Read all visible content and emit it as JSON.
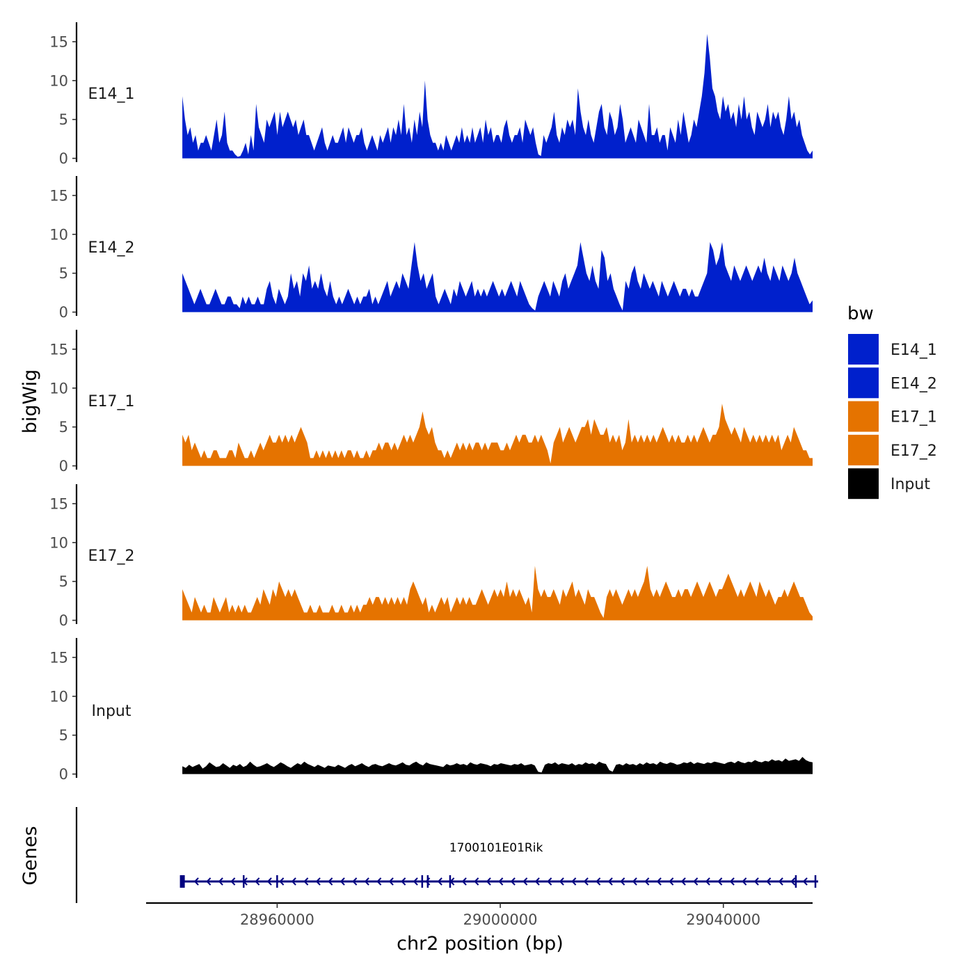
{
  "chart_data": {
    "type": "area",
    "title": "",
    "ylabel": "bigWig",
    "genes_label": "Genes",
    "xlabel": "chr2 position (bp)",
    "xlim": [
      28936500,
      29056000
    ],
    "ylim": [
      0,
      17.5
    ],
    "y_ticks": [
      0,
      5,
      10,
      15
    ],
    "x_ticks": [
      28960000,
      29000000,
      29040000
    ],
    "x_tick_labels": [
      "28960000",
      "29000000",
      "29040000"
    ],
    "legend": {
      "title": "bw",
      "position": "right",
      "entries": [
        {
          "name": "E14_1",
          "color": "#0020cc"
        },
        {
          "name": "E14_2",
          "color": "#0020cc"
        },
        {
          "name": "E17_1",
          "color": "#e57300"
        },
        {
          "name": "E17_2",
          "color": "#e57300"
        },
        {
          "name": "Input",
          "color": "#000000"
        }
      ]
    },
    "series": [
      {
        "name": "E14_1",
        "color": "#0020cc",
        "x_start": 28943000,
        "x_end": 29056000,
        "values": [
          8,
          5,
          3,
          4,
          2,
          3,
          1,
          2,
          2,
          3,
          2,
          1,
          3,
          5,
          2,
          3,
          6,
          2,
          1,
          1,
          0.5,
          0.2,
          0.3,
          1,
          2,
          0.5,
          3,
          1,
          7,
          4,
          3,
          2,
          5,
          4,
          5,
          6,
          3,
          6,
          4,
          5,
          6,
          5,
          4,
          5,
          3,
          4,
          5,
          3,
          3,
          2,
          1,
          2,
          3,
          4,
          2,
          1,
          2,
          3,
          2,
          2,
          3,
          4,
          2,
          4,
          3,
          2,
          3,
          3,
          4,
          2,
          1,
          2,
          3,
          2,
          1,
          3,
          2,
          3,
          4,
          2,
          4,
          3,
          5,
          3,
          7,
          3,
          4,
          2,
          5,
          3,
          6,
          4,
          10,
          5,
          3,
          2,
          2,
          1,
          2,
          1,
          3,
          2,
          1,
          2,
          3,
          2,
          4,
          2,
          3,
          2,
          4,
          2,
          3,
          4,
          2,
          5,
          3,
          4,
          2,
          3,
          3,
          2,
          4,
          5,
          3,
          2,
          3,
          3,
          4,
          2,
          5,
          4,
          3,
          4,
          2,
          0.5,
          0.3,
          3,
          2,
          3,
          4,
          6,
          3,
          2,
          4,
          3,
          5,
          4,
          5,
          3,
          9,
          6,
          4,
          3,
          5,
          3,
          2,
          4,
          6,
          7,
          4,
          3,
          6,
          5,
          3,
          4,
          7,
          5,
          2,
          3,
          4,
          3,
          2,
          5,
          4,
          3,
          2,
          7,
          3,
          3,
          4,
          2,
          3,
          3,
          1,
          4,
          3,
          2,
          5,
          3,
          6,
          4,
          2,
          3,
          5,
          4,
          6,
          8,
          11,
          16,
          13,
          9,
          8,
          6,
          5,
          8,
          6,
          7,
          5,
          6,
          4,
          7,
          5,
          8,
          5,
          6,
          4,
          3,
          6,
          5,
          4,
          5,
          7,
          4,
          6,
          5,
          6,
          4,
          3,
          5,
          8,
          5,
          6,
          4,
          5,
          3,
          2,
          1,
          0.5,
          1
        ]
      },
      {
        "name": "E14_2",
        "color": "#0020cc",
        "x_start": 28943000,
        "x_end": 29056000,
        "values": [
          5,
          4,
          3,
          2,
          1,
          2,
          3,
          2,
          1,
          1,
          2,
          3,
          2,
          1,
          1,
          2,
          2,
          1,
          1,
          0.5,
          2,
          1,
          2,
          1,
          1,
          2,
          1,
          1,
          3,
          4,
          2,
          1,
          3,
          2,
          1,
          2,
          5,
          3,
          4,
          2,
          5,
          4,
          6,
          3,
          4,
          3,
          5,
          3,
          2,
          4,
          2,
          1,
          2,
          1,
          2,
          3,
          2,
          1,
          2,
          1,
          2,
          2,
          3,
          1,
          2,
          1,
          2,
          3,
          4,
          2,
          3,
          4,
          3,
          5,
          4,
          3,
          6,
          9,
          6,
          4,
          5,
          3,
          4,
          5,
          2,
          1,
          2,
          3,
          2,
          1,
          3,
          2,
          4,
          3,
          2,
          3,
          4,
          2,
          3,
          2,
          3,
          2,
          3,
          4,
          3,
          2,
          3,
          2,
          3,
          4,
          3,
          2,
          4,
          3,
          2,
          1,
          0.5,
          0.2,
          2,
          3,
          4,
          3,
          2,
          4,
          3,
          2,
          4,
          5,
          3,
          4,
          5,
          6,
          9,
          7,
          5,
          4,
          6,
          4,
          3,
          8,
          7,
          4,
          5,
          3,
          2,
          1,
          0.2,
          4,
          3,
          5,
          6,
          4,
          3,
          5,
          4,
          3,
          4,
          3,
          2,
          4,
          3,
          2,
          3,
          4,
          3,
          2,
          3,
          3,
          2,
          3,
          2,
          2,
          3,
          4,
          5,
          9,
          8,
          6,
          7,
          9,
          6,
          5,
          4,
          6,
          5,
          4,
          5,
          6,
          5,
          4,
          5,
          6,
          5,
          7,
          5,
          4,
          6,
          5,
          4,
          6,
          5,
          4,
          5,
          7,
          5,
          4,
          3,
          2,
          1,
          1.5
        ]
      },
      {
        "name": "E17_1",
        "color": "#e57300",
        "x_start": 28943000,
        "x_end": 29056000,
        "values": [
          4,
          3,
          4,
          2,
          3,
          2,
          1,
          2,
          1,
          1,
          2,
          2,
          1,
          1,
          1,
          2,
          2,
          1,
          3,
          2,
          1,
          1,
          2,
          1,
          2,
          3,
          2,
          3,
          4,
          3,
          3,
          4,
          3,
          4,
          3,
          4,
          3,
          4,
          5,
          4,
          3,
          1,
          1,
          2,
          1,
          2,
          1,
          2,
          1,
          2,
          1,
          2,
          1,
          2,
          2,
          1,
          2,
          1,
          1,
          2,
          1,
          2,
          2,
          3,
          2,
          3,
          3,
          2,
          3,
          2,
          3,
          4,
          3,
          4,
          3,
          4,
          5,
          7,
          5,
          4,
          5,
          3,
          2,
          2,
          1,
          2,
          1,
          2,
          3,
          2,
          3,
          2,
          3,
          2,
          3,
          3,
          2,
          3,
          2,
          3,
          3,
          3,
          2,
          2,
          3,
          2,
          3,
          4,
          3,
          4,
          4,
          3,
          3,
          4,
          3,
          4,
          3,
          2,
          0.3,
          3,
          4,
          5,
          3,
          4,
          5,
          4,
          3,
          4,
          5,
          5,
          6,
          4,
          6,
          5,
          4,
          4,
          5,
          3,
          4,
          3,
          4,
          2,
          3,
          6,
          3,
          4,
          3,
          4,
          3,
          4,
          3,
          4,
          3,
          4,
          5,
          4,
          3,
          4,
          3,
          4,
          3,
          3,
          4,
          3,
          4,
          3,
          4,
          5,
          4,
          3,
          4,
          4,
          5,
          8,
          6,
          5,
          4,
          5,
          4,
          3,
          5,
          4,
          3,
          4,
          3,
          4,
          3,
          4,
          3,
          4,
          3,
          4,
          2,
          3,
          4,
          3,
          5,
          4,
          3,
          2,
          2,
          1,
          1
        ]
      },
      {
        "name": "E17_2",
        "color": "#e57300",
        "x_start": 28943000,
        "x_end": 29056000,
        "values": [
          4,
          3,
          2,
          1,
          3,
          2,
          1,
          2,
          1,
          1,
          3,
          2,
          1,
          2,
          3,
          1,
          2,
          1,
          2,
          1,
          2,
          1,
          1,
          2,
          3,
          2,
          4,
          3,
          2,
          4,
          3,
          5,
          4,
          3,
          4,
          3,
          4,
          3,
          2,
          1,
          1,
          2,
          1,
          1,
          2,
          1,
          1,
          1,
          2,
          1,
          1,
          2,
          1,
          1,
          2,
          1,
          2,
          1,
          2,
          2,
          3,
          2,
          3,
          3,
          2,
          3,
          2,
          3,
          2,
          3,
          2,
          3,
          2,
          4,
          5,
          4,
          3,
          2,
          3,
          1,
          2,
          1,
          2,
          3,
          2,
          3,
          1,
          2,
          3,
          2,
          3,
          2,
          3,
          2,
          2,
          3,
          4,
          3,
          2,
          3,
          4,
          3,
          4,
          3,
          5,
          3,
          4,
          3,
          4,
          3,
          2,
          3,
          1,
          7,
          4,
          3,
          4,
          3,
          3,
          4,
          3,
          2,
          4,
          3,
          4,
          5,
          3,
          4,
          3,
          2,
          4,
          3,
          3,
          2,
          1,
          0.3,
          3,
          4,
          3,
          4,
          3,
          2,
          3,
          4,
          3,
          4,
          3,
          4,
          5,
          7,
          4,
          3,
          4,
          3,
          4,
          5,
          4,
          3,
          3,
          4,
          3,
          4,
          4,
          3,
          4,
          5,
          4,
          3,
          4,
          5,
          4,
          3,
          4,
          4,
          5,
          6,
          5,
          4,
          3,
          4,
          3,
          4,
          5,
          4,
          3,
          5,
          4,
          3,
          4,
          3,
          2,
          3,
          3,
          4,
          3,
          4,
          5,
          4,
          3,
          3,
          2,
          1,
          0.5
        ]
      },
      {
        "name": "Input",
        "color": "#000000",
        "x_start": 28943000,
        "x_end": 29056000,
        "values": [
          1,
          0.8,
          1.2,
          0.9,
          1.1,
          1.3,
          0.7,
          1,
          1.5,
          1.2,
          0.9,
          1,
          1.4,
          1.1,
          0.8,
          1.2,
          1,
          1.3,
          0.9,
          1.1,
          1.6,
          1.2,
          0.9,
          1,
          1.2,
          1.4,
          1.1,
          0.9,
          1.2,
          1.5,
          1.3,
          1,
          0.8,
          1.1,
          1.4,
          1.2,
          1.6,
          1.3,
          1.1,
          0.9,
          1.2,
          1,
          0.8,
          1.1,
          1,
          0.9,
          1.2,
          1,
          0.8,
          1.1,
          1.3,
          1,
          1.2,
          1.4,
          1.1,
          0.9,
          1.2,
          1.3,
          1.1,
          1,
          1.2,
          1.4,
          1.2,
          1.1,
          1.3,
          1.5,
          1.2,
          1.1,
          1.4,
          1.6,
          1.3,
          1.1,
          1.5,
          1.3,
          1.2,
          1.1,
          1,
          0.9,
          1.3,
          1.1,
          1.2,
          1.4,
          1.2,
          1.3,
          1.1,
          1.5,
          1.3,
          1.2,
          1.4,
          1.3,
          1.2,
          1,
          1.3,
          1.2,
          1.4,
          1.3,
          1.2,
          1.1,
          1.3,
          1.2,
          1.4,
          1.1,
          1.2,
          1.3,
          1.1,
          0.3,
          0.2,
          1.2,
          1.4,
          1.3,
          1.5,
          1.2,
          1.4,
          1.3,
          1.2,
          1.4,
          1.1,
          1.3,
          1.2,
          1.5,
          1.3,
          1.4,
          1.2,
          1.6,
          1.4,
          1.3,
          0.5,
          0.3,
          1.2,
          1.3,
          1.1,
          1.4,
          1.2,
          1.3,
          1.1,
          1.4,
          1.2,
          1.5,
          1.3,
          1.4,
          1.2,
          1.6,
          1.4,
          1.3,
          1.5,
          1.4,
          1.2,
          1.3,
          1.5,
          1.4,
          1.6,
          1.3,
          1.5,
          1.4,
          1.3,
          1.5,
          1.4,
          1.6,
          1.5,
          1.4,
          1.3,
          1.5,
          1.6,
          1.4,
          1.7,
          1.5,
          1.4,
          1.6,
          1.5,
          1.8,
          1.6,
          1.5,
          1.7,
          1.6,
          1.9,
          1.7,
          1.8,
          1.6,
          2,
          1.7,
          1.8,
          1.9,
          1.7,
          2.2,
          1.8,
          1.6,
          1.5
        ]
      }
    ],
    "gene": {
      "name": "1700101E01Rik",
      "start": 28943000,
      "end": 29057000,
      "strand": "-",
      "color": "#000080",
      "exons": [
        28943000,
        28954000,
        28960000,
        28986000,
        28987000,
        28991000,
        29053000,
        29056500
      ]
    }
  }
}
